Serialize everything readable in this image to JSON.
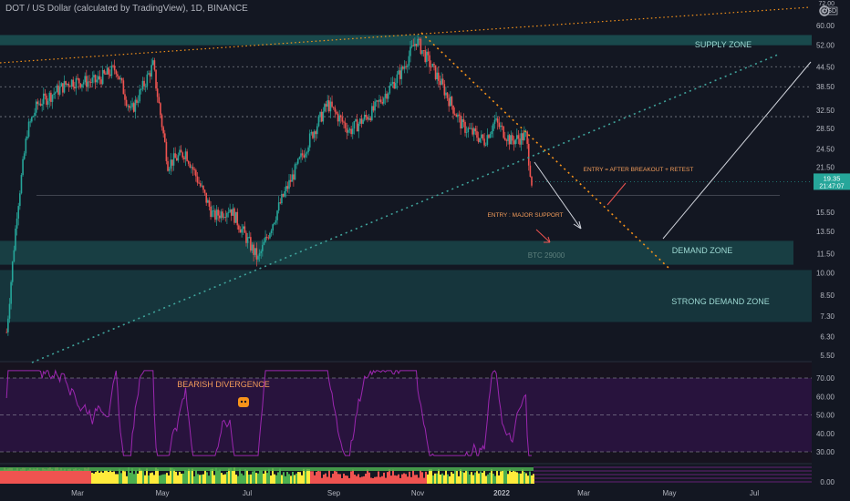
{
  "header": {
    "title": "DOT / US Dollar (calculated by TradingView), 1D, BINANCE"
  },
  "price_axis": {
    "currency": "USD",
    "top_label": "72.00",
    "current_price": "19.35",
    "countdown": "21:47:07"
  },
  "annotations": {
    "supply_zone": "SUPPLY ZONE",
    "demand_zone": "DEMAND ZONE",
    "strong_demand_zone": "STRONG DEMAND ZONE",
    "btc_level": "BTC 29000",
    "entry_breakout": "ENTRY = AFTER BREAKOUT + RETEST",
    "entry_support": "ENTRY : MAJOR SUPPORT",
    "bearish_divergence": "BEARISH DIVERGENCE"
  },
  "colors": {
    "background": "#131722",
    "candle_up": "#26a69a",
    "candle_down": "#ef5350",
    "zone_fill": "#26a69a",
    "orange_line": "#f7931a",
    "teal_line": "#3fa39b",
    "rsi_line": "#9c27b0",
    "rsi_band": "#2a1440",
    "price_tag": "#26a69a"
  },
  "chart_data": [
    {
      "type": "line",
      "name": "price",
      "scale": "log",
      "x_labels": [
        "Mar",
        "May",
        "Jul",
        "Sep",
        "Nov",
        "2022",
        "Mar",
        "May",
        "Jul"
      ],
      "y_ticks": [
        "60.00",
        "52.00",
        "44.50",
        "38.50",
        "32.50",
        "28.50",
        "24.50",
        "21.50",
        "15.50",
        "13.50",
        "11.50",
        "10.00",
        "8.50",
        "7.30",
        "6.30",
        "5.50"
      ],
      "approx_series": [
        {
          "date": "2021-01-31",
          "close": 6.5
        },
        {
          "date": "2021-02-07",
          "close": 15.5
        },
        {
          "date": "2021-02-14",
          "close": 28.0
        },
        {
          "date": "2021-02-21",
          "close": 34.0
        },
        {
          "date": "2021-03-01",
          "close": 36.0
        },
        {
          "date": "2021-03-15",
          "close": 40.0
        },
        {
          "date": "2021-04-01",
          "close": 40.0
        },
        {
          "date": "2021-04-15",
          "close": 44.0
        },
        {
          "date": "2021-04-25",
          "close": 32.0
        },
        {
          "date": "2021-05-10",
          "close": 45.0
        },
        {
          "date": "2021-05-20",
          "close": 22.0
        },
        {
          "date": "2021-06-01",
          "close": 24.0
        },
        {
          "date": "2021-06-20",
          "close": 15.0
        },
        {
          "date": "2021-07-01",
          "close": 16.0
        },
        {
          "date": "2021-07-20",
          "close": 11.0
        },
        {
          "date": "2021-08-05",
          "close": 17.0
        },
        {
          "date": "2021-08-25",
          "close": 27.0
        },
        {
          "date": "2021-09-05",
          "close": 34.0
        },
        {
          "date": "2021-09-20",
          "close": 28.0
        },
        {
          "date": "2021-10-05",
          "close": 32.0
        },
        {
          "date": "2021-10-25",
          "close": 43.0
        },
        {
          "date": "2021-11-04",
          "close": 54.0
        },
        {
          "date": "2021-11-20",
          "close": 40.0
        },
        {
          "date": "2021-12-05",
          "close": 29.0
        },
        {
          "date": "2021-12-20",
          "close": 26.0
        },
        {
          "date": "2021-12-27",
          "close": 30.0
        },
        {
          "date": "2022-01-07",
          "close": 26.0
        },
        {
          "date": "2022-01-17",
          "close": 27.0
        },
        {
          "date": "2022-01-21",
          "close": 19.35
        }
      ],
      "zones": [
        {
          "label": "SUPPLY ZONE",
          "range": [
            52.0,
            56.0
          ]
        },
        {
          "label": "DEMAND ZONE",
          "range": [
            10.6,
            12.6
          ]
        },
        {
          "label": "STRONG DEMAND ZONE",
          "range": [
            7.0,
            10.2
          ]
        }
      ],
      "horizontal_levels": [
        44.5,
        38.5,
        31.0,
        19.35,
        17.5
      ]
    },
    {
      "type": "line",
      "name": "RSI",
      "ylim": [
        25,
        75
      ],
      "y_ticks": [
        "70.00",
        "60.00",
        "50.00",
        "40.00",
        "30.00"
      ],
      "levels": [
        70,
        50,
        30
      ]
    },
    {
      "type": "bar",
      "name": "indicator",
      "y_ticks": [
        "0.00"
      ]
    }
  ]
}
